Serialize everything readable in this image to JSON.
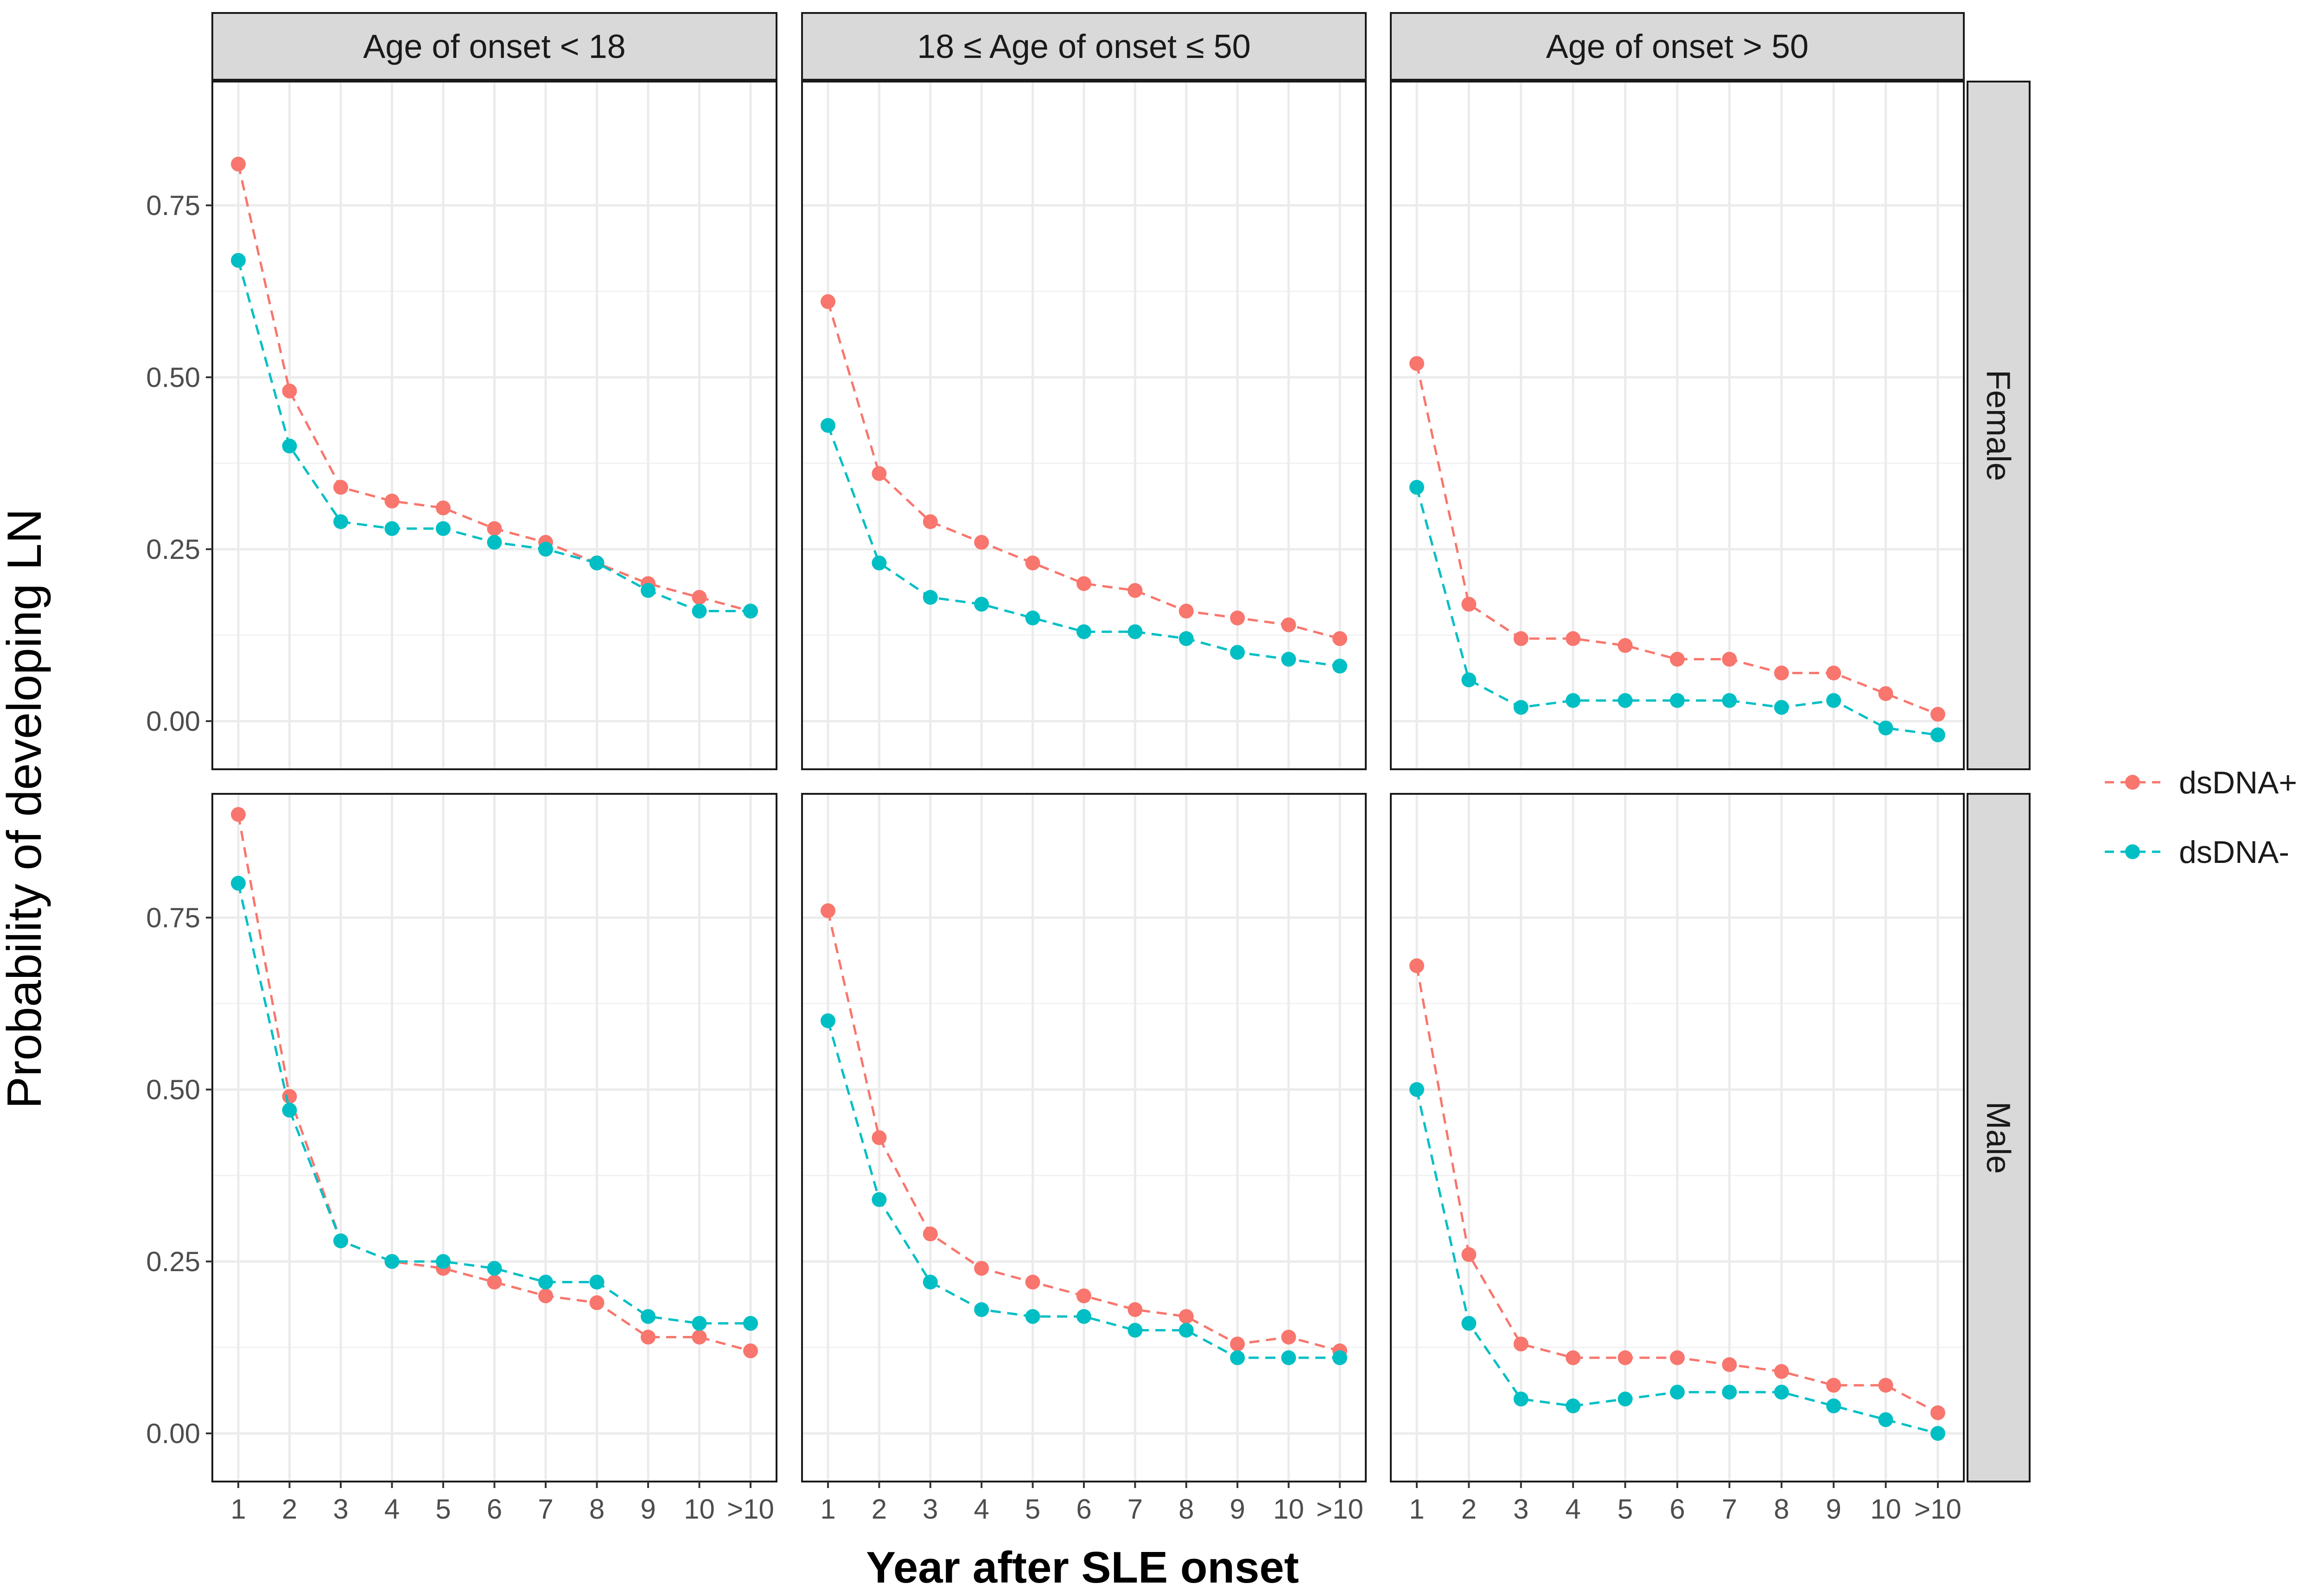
{
  "chart_data": {
    "type": "line",
    "xlabel": "Year after SLE onset",
    "ylabel": "Probability of developing LN",
    "x": [
      "1",
      "2",
      "3",
      "4",
      "5",
      "6",
      "7",
      "8",
      "9",
      "10",
      ">10"
    ],
    "ylim": [
      -0.07,
      0.93
    ],
    "yticks": [
      0.0,
      0.25,
      0.5,
      0.75
    ],
    "ytick_labels": [
      "0.00",
      "0.25",
      "0.50",
      "0.75"
    ],
    "grid": true,
    "legend_position": "right",
    "col_facets": [
      "Age of onset < 18",
      "18 ≤ Age of onset ≤ 50",
      "Age of onset > 50"
    ],
    "row_facets": [
      "Female",
      "Male"
    ],
    "series": [
      {
        "name": "dsDNA+",
        "color": "#F8766D"
      },
      {
        "name": "dsDNA-",
        "color": "#00BFC4"
      }
    ],
    "panels": [
      {
        "row": "Female",
        "col": "Age of onset < 18",
        "values": {
          "dsDNA+": [
            0.81,
            0.48,
            0.34,
            0.32,
            0.31,
            0.28,
            0.26,
            0.23,
            0.2,
            0.18,
            0.16
          ],
          "dsDNA-": [
            0.67,
            0.4,
            0.29,
            0.28,
            0.28,
            0.26,
            0.25,
            0.23,
            0.19,
            0.16,
            0.16
          ]
        }
      },
      {
        "row": "Female",
        "col": "18 ≤ Age of onset ≤ 50",
        "values": {
          "dsDNA+": [
            0.61,
            0.36,
            0.29,
            0.26,
            0.23,
            0.2,
            0.19,
            0.16,
            0.15,
            0.14,
            0.12
          ],
          "dsDNA-": [
            0.43,
            0.23,
            0.18,
            0.17,
            0.15,
            0.13,
            0.13,
            0.12,
            0.1,
            0.09,
            0.08
          ]
        }
      },
      {
        "row": "Female",
        "col": "Age of onset > 50",
        "values": {
          "dsDNA+": [
            0.52,
            0.17,
            0.12,
            0.12,
            0.11,
            0.09,
            0.09,
            0.07,
            0.07,
            0.04,
            0.01
          ],
          "dsDNA-": [
            0.34,
            0.06,
            0.02,
            0.03,
            0.03,
            0.03,
            0.03,
            0.02,
            0.03,
            -0.01,
            -0.02
          ]
        }
      },
      {
        "row": "Male",
        "col": "Age of onset < 18",
        "values": {
          "dsDNA+": [
            0.9,
            0.49,
            0.28,
            0.25,
            0.24,
            0.22,
            0.2,
            0.19,
            0.14,
            0.14,
            0.12
          ],
          "dsDNA-": [
            0.8,
            0.47,
            0.28,
            0.25,
            0.25,
            0.24,
            0.22,
            0.22,
            0.17,
            0.16,
            0.16
          ]
        }
      },
      {
        "row": "Male",
        "col": "18 ≤ Age of onset ≤ 50",
        "values": {
          "dsDNA+": [
            0.76,
            0.43,
            0.29,
            0.24,
            0.22,
            0.2,
            0.18,
            0.17,
            0.13,
            0.14,
            0.12
          ],
          "dsDNA-": [
            0.6,
            0.34,
            0.22,
            0.18,
            0.17,
            0.17,
            0.15,
            0.15,
            0.11,
            0.11,
            0.11
          ]
        }
      },
      {
        "row": "Male",
        "col": "Age of onset > 50",
        "values": {
          "dsDNA+": [
            0.68,
            0.26,
            0.13,
            0.11,
            0.11,
            0.11,
            0.1,
            0.09,
            0.07,
            0.07,
            0.03
          ],
          "dsDNA-": [
            0.5,
            0.16,
            0.05,
            0.04,
            0.05,
            0.06,
            0.06,
            0.06,
            0.04,
            0.02,
            0.0
          ]
        }
      }
    ]
  }
}
